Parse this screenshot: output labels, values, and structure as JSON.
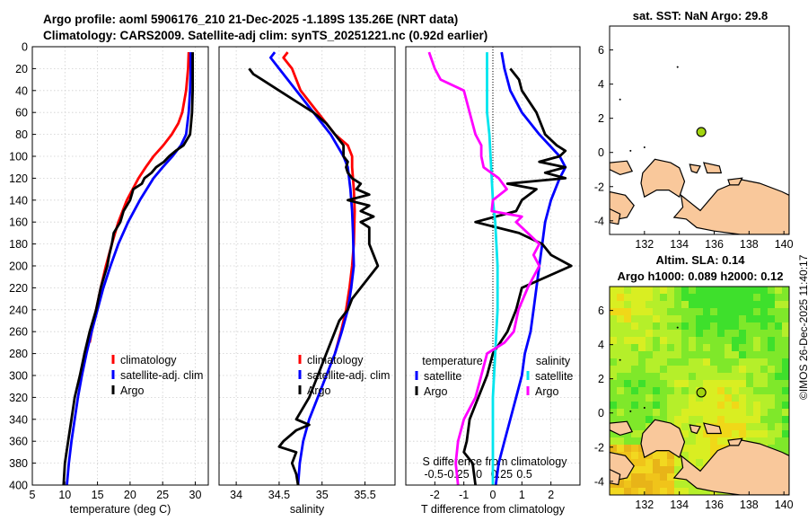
{
  "header": {
    "line1": "Argo profile: aoml 5906176_210 21-Dec-2025 -1.189S 135.26E (NRT data)",
    "line2": "Climatology: CARS2009. Satellite-adj clim: synTS_20251221.nc (0.92d earlier)"
  },
  "credit": "©IMOS 26-Dec-2025 11:40:17",
  "colors": {
    "climatology": "#ff0000",
    "satellite": "#0000ff",
    "argo": "#000000",
    "sal_diff_sat": "#00e5ee",
    "sal_diff_argo": "#ff00ff",
    "land": "#f9c89b",
    "sla_bg": "#b5ef2a"
  },
  "chart_data": [
    {
      "type": "line",
      "name": "temperature-profile",
      "xlabel": "temperature (deg C)",
      "ylabel": "depth",
      "xlim": [
        5,
        32
      ],
      "ylim": [
        400,
        0
      ],
      "xticks": [
        "5",
        "10",
        "15",
        "20",
        "25",
        "30"
      ],
      "xtick_values": [
        5,
        10,
        15,
        20,
        25,
        30
      ],
      "yticks": [
        "0",
        "20",
        "40",
        "60",
        "80",
        "100",
        "120",
        "140",
        "160",
        "180",
        "200",
        "220",
        "240",
        "260",
        "280",
        "300",
        "320",
        "340",
        "360",
        "380",
        "400"
      ],
      "grid": true,
      "legend": {
        "position": "bottom-middle",
        "labels": [
          "climatology",
          "satellite-adj. clim",
          "Argo"
        ]
      },
      "series": [
        {
          "name": "climatology",
          "color": "#ff0000",
          "depth": [
            5,
            20,
            40,
            60,
            70,
            80,
            90,
            100,
            110,
            120,
            140,
            160,
            180,
            200,
            220,
            240,
            260,
            270
          ],
          "values": [
            29.0,
            28.9,
            28.6,
            28.0,
            27.4,
            26.4,
            25.1,
            23.6,
            22.4,
            21.3,
            19.5,
            18.2,
            17.2,
            16.3,
            15.5,
            14.8,
            14.1,
            13.8
          ]
        },
        {
          "name": "satellite-adj. clim",
          "color": "#0000ff",
          "depth": [
            5,
            20,
            40,
            60,
            80,
            90,
            100,
            110,
            120,
            140,
            160,
            180,
            200,
            220,
            240,
            260,
            280,
            300,
            320,
            340,
            360,
            380,
            400
          ],
          "values": [
            29.3,
            29.3,
            29.2,
            29.0,
            28.6,
            27.8,
            26.5,
            25.0,
            23.6,
            21.5,
            19.7,
            18.2,
            17.0,
            15.9,
            15.0,
            14.1,
            13.3,
            12.6,
            12.0,
            11.5,
            11.0,
            10.6,
            10.3
          ]
        },
        {
          "name": "Argo",
          "color": "#000000",
          "depth": [
            5,
            20,
            40,
            60,
            80,
            90,
            95,
            100,
            105,
            110,
            115,
            120,
            125,
            130,
            140,
            150,
            160,
            170,
            180,
            190,
            200,
            220,
            240,
            260,
            280,
            300,
            320,
            340,
            360,
            380,
            400
          ],
          "values": [
            29.6,
            29.6,
            29.6,
            29.5,
            29.2,
            28.2,
            27.0,
            26.0,
            25.2,
            24.0,
            23.3,
            22.2,
            21.8,
            20.5,
            20.0,
            19.0,
            18.5,
            17.5,
            17.2,
            16.8,
            16.5,
            15.5,
            14.8,
            13.8,
            13.0,
            12.3,
            11.5,
            11.0,
            10.5,
            10.0,
            9.8
          ]
        }
      ]
    },
    {
      "type": "line",
      "name": "salinity-profile",
      "xlabel": "salinity",
      "xlim": [
        33.8,
        35.85
      ],
      "ylim": [
        400,
        0
      ],
      "xticks": [
        "34",
        "34.5",
        "35",
        "35.5"
      ],
      "xtick_values": [
        34,
        34.5,
        35,
        35.5
      ],
      "grid": true,
      "legend": {
        "position": "bottom-middle",
        "labels": [
          "climatology",
          "satellite-adj. clim",
          "Argo"
        ]
      },
      "series": [
        {
          "name": "climatology",
          "color": "#ff0000",
          "depth": [
            5,
            10,
            20,
            40,
            60,
            80,
            90,
            100,
            110,
            130,
            150,
            180,
            200,
            220,
            240,
            260,
            280
          ],
          "values": [
            34.6,
            34.55,
            34.65,
            34.75,
            34.95,
            35.15,
            35.3,
            35.35,
            35.35,
            35.37,
            35.38,
            35.37,
            35.35,
            35.32,
            35.28,
            35.22,
            35.15
          ]
        },
        {
          "name": "satellite-adj. clim",
          "color": "#0000ff",
          "depth": [
            5,
            10,
            20,
            40,
            60,
            80,
            100,
            110,
            130,
            150,
            170,
            200,
            220,
            240,
            260,
            280,
            300,
            320,
            340,
            360,
            380,
            400
          ],
          "values": [
            34.45,
            34.4,
            34.5,
            34.7,
            34.9,
            35.1,
            35.25,
            35.3,
            35.33,
            35.35,
            35.36,
            35.37,
            35.34,
            35.3,
            35.23,
            35.15,
            35.05,
            34.95,
            34.85,
            34.78,
            34.74,
            34.72
          ]
        },
        {
          "name": "Argo",
          "color": "#000000",
          "depth": [
            20,
            25,
            30,
            40,
            50,
            60,
            70,
            80,
            90,
            100,
            105,
            110,
            115,
            120,
            125,
            130,
            135,
            140,
            145,
            150,
            155,
            160,
            165,
            170,
            180,
            190,
            200,
            210,
            220,
            230,
            240,
            250,
            260,
            280,
            300,
            320,
            340,
            345,
            350,
            360,
            365,
            370,
            380,
            390,
            400
          ],
          "values": [
            34.15,
            34.2,
            34.3,
            34.5,
            34.7,
            34.9,
            35.05,
            35.15,
            35.25,
            35.25,
            35.3,
            35.28,
            35.3,
            35.35,
            35.45,
            35.4,
            35.55,
            35.3,
            35.55,
            35.45,
            35.6,
            35.45,
            35.55,
            35.55,
            35.55,
            35.6,
            35.65,
            35.55,
            35.45,
            35.35,
            35.3,
            35.2,
            35.15,
            35.05,
            34.95,
            34.85,
            34.7,
            34.85,
            34.7,
            34.55,
            34.5,
            34.7,
            34.65,
            34.7,
            34.72
          ]
        }
      ]
    },
    {
      "type": "line",
      "name": "difference-profile",
      "xlabel": "T difference from climatology",
      "xlabel_top": "S difference from climatology",
      "xlim": [
        -3,
        3
      ],
      "ylim": [
        400,
        0
      ],
      "xticks": [
        "-2",
        "-1",
        "0",
        "1",
        "2"
      ],
      "xtick_values": [
        -2,
        -1,
        0,
        1,
        2
      ],
      "xticks_top": [
        "-0.5",
        "-0.25",
        "0",
        "0.25",
        "0.5"
      ],
      "grid": true,
      "legend": {
        "position": "bottom",
        "left_title": "temperature",
        "right_title": "salinity",
        "labels": [
          "satellite",
          "Argo",
          "satellite",
          "Argo"
        ]
      },
      "series": [
        {
          "name": "temperature satellite",
          "color": "#0000ff",
          "depth": [
            5,
            20,
            40,
            60,
            80,
            100,
            110,
            120,
            140,
            160,
            180,
            200,
            220,
            240,
            260,
            280,
            300,
            320,
            340,
            360,
            380,
            400
          ],
          "values": [
            0.3,
            0.4,
            0.6,
            1.0,
            1.6,
            2.3,
            2.5,
            2.3,
            2.0,
            1.8,
            1.7,
            1.6,
            1.5,
            1.4,
            1.3,
            1.1,
            1.0,
            0.8,
            0.6,
            0.4,
            0.2,
            0.1
          ]
        },
        {
          "name": "temperature Argo",
          "color": "#000000",
          "depth": [
            20,
            30,
            40,
            60,
            80,
            90,
            95,
            100,
            105,
            110,
            115,
            120,
            125,
            130,
            140,
            150,
            160,
            170,
            180,
            190,
            200,
            220,
            240,
            260,
            280,
            300,
            320,
            340,
            360,
            370,
            380,
            400
          ],
          "values": [
            0.6,
            0.9,
            1.0,
            1.5,
            1.8,
            2.2,
            2.5,
            2.3,
            1.6,
            2.5,
            1.8,
            2.5,
            0.5,
            1.5,
            1.0,
            0.8,
            -0.6,
            0.9,
            1.7,
            2.0,
            2.7,
            1.0,
            0.8,
            0.5,
            0.0,
            -0.2,
            -0.5,
            -0.8,
            -0.9,
            -1.0,
            -0.7,
            -0.6
          ]
        },
        {
          "name": "salinity satellite",
          "color": "#00e5ee",
          "depth": [
            5,
            20,
            40,
            60,
            80,
            100,
            120,
            140,
            150,
            160,
            180,
            200,
            220,
            240,
            260,
            280,
            300,
            320,
            340,
            360,
            380,
            400
          ],
          "values": [
            -0.05,
            -0.05,
            -0.05,
            -0.05,
            -0.03,
            -0.02,
            -0.01,
            0.0,
            0.01,
            0.02,
            0.03,
            0.04,
            0.04,
            0.04,
            0.03,
            0.02,
            0.01,
            0.0,
            0.0,
            0.0,
            0.0,
            0.0
          ]
        },
        {
          "name": "salinity Argo",
          "color": "#ff00ff",
          "depth": [
            5,
            20,
            30,
            40,
            60,
            80,
            90,
            100,
            110,
            120,
            130,
            140,
            150,
            155,
            160,
            170,
            180,
            190,
            200,
            220,
            240,
            260,
            270,
            280,
            300,
            320,
            340,
            360,
            380,
            400
          ],
          "values": [
            -0.55,
            -0.5,
            -0.45,
            -0.25,
            -0.2,
            -0.15,
            -0.1,
            -0.1,
            -0.08,
            0.05,
            0.12,
            0.0,
            -0.01,
            0.25,
            0.2,
            0.3,
            0.4,
            0.35,
            0.4,
            0.3,
            0.22,
            0.18,
            0.1,
            -0.05,
            -0.1,
            -0.15,
            -0.25,
            -0.3,
            -0.32,
            -0.3
          ]
        }
      ]
    },
    {
      "type": "scatter",
      "name": "sst-map",
      "title": "sat. SST: NaN Argo: 29.8",
      "xlim": [
        130,
        140.3
      ],
      "ylim": [
        -4.8,
        7.4
      ],
      "xticks": [
        "132",
        "134",
        "136",
        "138",
        "140"
      ],
      "xtick_values": [
        132,
        134,
        136,
        138,
        140
      ],
      "yticks": [
        "6",
        "4",
        "2",
        "0",
        "-2",
        "-4"
      ],
      "ytick_values": [
        6,
        4,
        2,
        0,
        -2,
        -4
      ],
      "points": [
        {
          "x": 135.26,
          "y": 1.2,
          "label": "Argo"
        }
      ]
    },
    {
      "type": "heatmap",
      "name": "sla-map",
      "title_line1": "Altim. SLA: 0.14",
      "title_line2": "Argo h1000: 0.089 h2000: 0.12",
      "xlim": [
        130,
        140.3
      ],
      "ylim": [
        -4.8,
        7.4
      ],
      "xticks": [
        "132",
        "134",
        "136",
        "138",
        "140"
      ],
      "xtick_values": [
        132,
        134,
        136,
        138,
        140
      ],
      "yticks": [
        "6",
        "4",
        "2",
        "0",
        "-2",
        "-4"
      ],
      "ytick_values": [
        6,
        4,
        2,
        0,
        -2,
        -4
      ],
      "points": [
        {
          "x": 135.26,
          "y": 1.2,
          "label": "Argo"
        }
      ]
    }
  ]
}
